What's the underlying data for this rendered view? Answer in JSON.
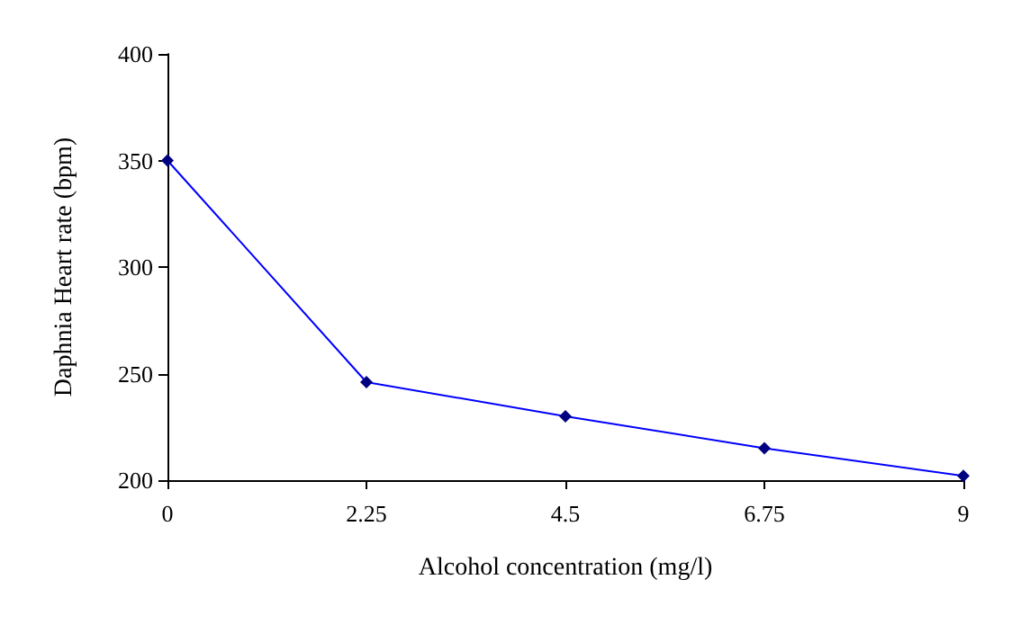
{
  "chart_data": {
    "type": "line",
    "xlabel": "Alcohol concentration (mg/l)",
    "ylabel": "Daphnia Heart rate (bpm)",
    "x": [
      0,
      2.25,
      4.5,
      6.75,
      9
    ],
    "series": [
      {
        "color": "#000080",
        "values": [
          350,
          246,
          230,
          215,
          202
        ]
      }
    ],
    "xlim": [
      0,
      9
    ],
    "xticks": [
      0,
      2.25,
      4.5,
      6.75,
      9
    ],
    "ylim": [
      200,
      400
    ],
    "yticks": [
      200,
      250,
      300,
      350,
      400
    ],
    "grid": false,
    "marker": "diamond",
    "line_style": "solid"
  }
}
